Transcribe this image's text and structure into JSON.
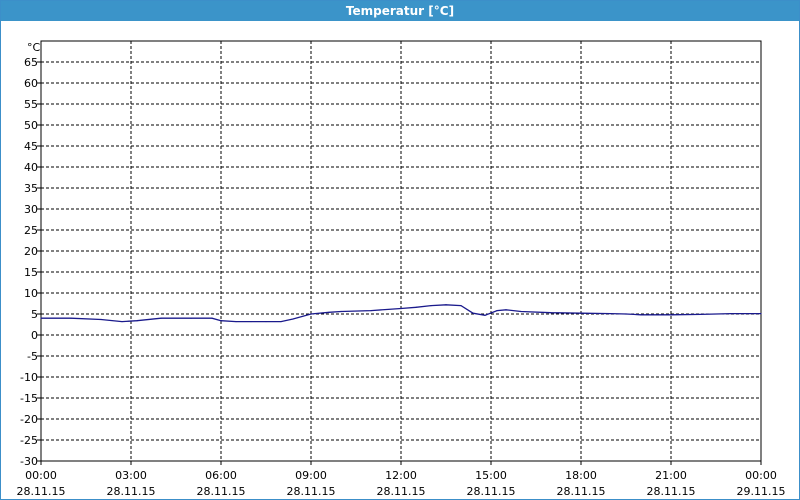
{
  "window": {
    "title": "Temperatur [°C]"
  },
  "chart_data": {
    "type": "line",
    "title": "Temperatur [°C]",
    "ylabel": "°C",
    "xlabel": "",
    "ylim": [
      -30,
      65
    ],
    "yticks": [
      65,
      60,
      55,
      50,
      45,
      40,
      35,
      30,
      25,
      20,
      15,
      10,
      5,
      0,
      -5,
      -10,
      -15,
      -20,
      -25,
      -30
    ],
    "xlim_hours": [
      0,
      24
    ],
    "xticks": [
      {
        "time": "00:00",
        "date": "28.11.15"
      },
      {
        "time": "03:00",
        "date": "28.11.15"
      },
      {
        "time": "06:00",
        "date": "28.11.15"
      },
      {
        "time": "09:00",
        "date": "28.11.15"
      },
      {
        "time": "12:00",
        "date": "28.11.15"
      },
      {
        "time": "15:00",
        "date": "28.11.15"
      },
      {
        "time": "18:00",
        "date": "28.11.15"
      },
      {
        "time": "21:00",
        "date": "28.11.15"
      },
      {
        "time": "00:00",
        "date": "29.11.15"
      }
    ],
    "grid": true,
    "line_color": "#1a1a8c",
    "series": [
      {
        "name": "",
        "x_hours": [
          0,
          1,
          2,
          2.7,
          3.2,
          4,
          5,
          5.7,
          6,
          6.5,
          7,
          7.5,
          8,
          8.4,
          9,
          9.6,
          10,
          11,
          12,
          12.5,
          13,
          13.5,
          14,
          14.4,
          14.8,
          15.2,
          15.5,
          16,
          17,
          18,
          19,
          19.5,
          20,
          21,
          22,
          23,
          24
        ],
        "y": [
          4,
          4,
          3.7,
          3.2,
          3.4,
          4,
          4,
          4,
          3.4,
          3.2,
          3.2,
          3.2,
          3.2,
          3.8,
          5,
          5.4,
          5.6,
          5.8,
          6.3,
          6.6,
          7,
          7.2,
          7,
          5.2,
          4.7,
          5.8,
          6,
          5.6,
          5.3,
          5.2,
          5.1,
          5,
          4.8,
          4.8,
          4.9,
          5.1,
          5.1
        ]
      }
    ]
  }
}
